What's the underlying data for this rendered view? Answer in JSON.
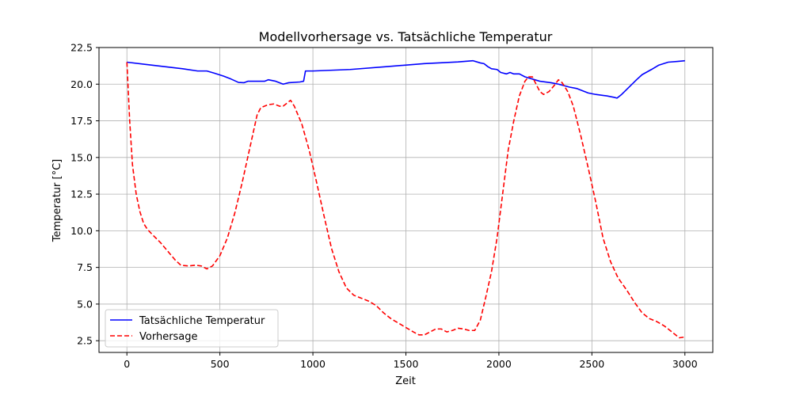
{
  "chart_data": {
    "type": "line",
    "title": "Modellvorhersage vs. Tatsächliche Temperatur",
    "xlabel": "Zeit",
    "ylabel": "Temperatur [°C]",
    "xlim": [
      -150,
      3150
    ],
    "ylim": [
      1.7,
      22.5
    ],
    "xticks": [
      0,
      500,
      1000,
      1500,
      2000,
      2500,
      3000
    ],
    "xtick_labels": [
      "0",
      "500",
      "1000",
      "1500",
      "2000",
      "2500",
      "3000"
    ],
    "yticks": [
      2.5,
      5.0,
      7.5,
      10.0,
      12.5,
      15.0,
      17.5,
      20.0,
      22.5
    ],
    "ytick_labels": [
      "2.5",
      "5.0",
      "7.5",
      "10.0",
      "12.5",
      "15.0",
      "17.5",
      "20.0",
      "22.5"
    ],
    "grid": true,
    "legend_position": "lower-left",
    "series": [
      {
        "name": "Tatsächliche Temperatur",
        "color": "#0000ff",
        "style": "solid",
        "points": [
          [
            0,
            21.5
          ],
          [
            100,
            21.35
          ],
          [
            200,
            21.2
          ],
          [
            300,
            21.05
          ],
          [
            380,
            20.9
          ],
          [
            430,
            20.9
          ],
          [
            470,
            20.75
          ],
          [
            520,
            20.55
          ],
          [
            560,
            20.35
          ],
          [
            600,
            20.12
          ],
          [
            630,
            20.1
          ],
          [
            650,
            20.2
          ],
          [
            700,
            20.2
          ],
          [
            740,
            20.2
          ],
          [
            760,
            20.3
          ],
          [
            800,
            20.2
          ],
          [
            840,
            20.0
          ],
          [
            870,
            20.1
          ],
          [
            930,
            20.15
          ],
          [
            950,
            20.2
          ],
          [
            960,
            20.9
          ],
          [
            1000,
            20.9
          ],
          [
            1200,
            21.0
          ],
          [
            1400,
            21.2
          ],
          [
            1600,
            21.4
          ],
          [
            1780,
            21.52
          ],
          [
            1860,
            21.6
          ],
          [
            1900,
            21.45
          ],
          [
            1920,
            21.4
          ],
          [
            1940,
            21.2
          ],
          [
            1960,
            21.05
          ],
          [
            1990,
            21.0
          ],
          [
            2010,
            20.8
          ],
          [
            2040,
            20.7
          ],
          [
            2060,
            20.8
          ],
          [
            2080,
            20.7
          ],
          [
            2110,
            20.7
          ],
          [
            2140,
            20.5
          ],
          [
            2180,
            20.35
          ],
          [
            2220,
            20.2
          ],
          [
            2280,
            20.1
          ],
          [
            2320,
            20.0
          ],
          [
            2350,
            19.9
          ],
          [
            2380,
            19.8
          ],
          [
            2420,
            19.7
          ],
          [
            2450,
            19.55
          ],
          [
            2480,
            19.4
          ],
          [
            2520,
            19.3
          ],
          [
            2580,
            19.2
          ],
          [
            2620,
            19.1
          ],
          [
            2635,
            19.05
          ],
          [
            2660,
            19.3
          ],
          [
            2700,
            19.8
          ],
          [
            2740,
            20.3
          ],
          [
            2770,
            20.65
          ],
          [
            2820,
            21.0
          ],
          [
            2860,
            21.3
          ],
          [
            2910,
            21.5
          ],
          [
            2960,
            21.55
          ],
          [
            3000,
            21.6
          ]
        ]
      },
      {
        "name": "Vorhersage",
        "color": "#ff0000",
        "style": "dashed",
        "points": [
          [
            0,
            21.5
          ],
          [
            15,
            17.5
          ],
          [
            30,
            14.5
          ],
          [
            50,
            12.5
          ],
          [
            70,
            11.3
          ],
          [
            90,
            10.5
          ],
          [
            110,
            10.1
          ],
          [
            140,
            9.7
          ],
          [
            180,
            9.2
          ],
          [
            220,
            8.6
          ],
          [
            260,
            8.0
          ],
          [
            290,
            7.65
          ],
          [
            330,
            7.6
          ],
          [
            370,
            7.65
          ],
          [
            400,
            7.6
          ],
          [
            430,
            7.4
          ],
          [
            460,
            7.6
          ],
          [
            500,
            8.3
          ],
          [
            540,
            9.5
          ],
          [
            580,
            11.2
          ],
          [
            620,
            13.3
          ],
          [
            660,
            15.6
          ],
          [
            700,
            17.9
          ],
          [
            720,
            18.4
          ],
          [
            760,
            18.6
          ],
          [
            790,
            18.65
          ],
          [
            820,
            18.5
          ],
          [
            840,
            18.5
          ],
          [
            860,
            18.7
          ],
          [
            880,
            18.9
          ],
          [
            900,
            18.5
          ],
          [
            940,
            17.3
          ],
          [
            980,
            15.5
          ],
          [
            1020,
            13.3
          ],
          [
            1060,
            11.0
          ],
          [
            1100,
            8.8
          ],
          [
            1140,
            7.2
          ],
          [
            1180,
            6.1
          ],
          [
            1220,
            5.6
          ],
          [
            1260,
            5.4
          ],
          [
            1300,
            5.2
          ],
          [
            1340,
            4.9
          ],
          [
            1380,
            4.4
          ],
          [
            1420,
            4.0
          ],
          [
            1460,
            3.7
          ],
          [
            1500,
            3.4
          ],
          [
            1540,
            3.1
          ],
          [
            1570,
            2.9
          ],
          [
            1600,
            2.9
          ],
          [
            1630,
            3.1
          ],
          [
            1660,
            3.3
          ],
          [
            1690,
            3.3
          ],
          [
            1720,
            3.1
          ],
          [
            1750,
            3.2
          ],
          [
            1780,
            3.35
          ],
          [
            1810,
            3.3
          ],
          [
            1840,
            3.2
          ],
          [
            1870,
            3.2
          ],
          [
            1900,
            3.9
          ],
          [
            1930,
            5.5
          ],
          [
            1960,
            7.2
          ],
          [
            1990,
            9.5
          ],
          [
            2020,
            12.5
          ],
          [
            2050,
            15.5
          ],
          [
            2080,
            17.5
          ],
          [
            2110,
            19.2
          ],
          [
            2140,
            20.2
          ],
          [
            2160,
            20.5
          ],
          [
            2180,
            20.5
          ],
          [
            2200,
            20.0
          ],
          [
            2220,
            19.5
          ],
          [
            2240,
            19.3
          ],
          [
            2270,
            19.5
          ],
          [
            2300,
            19.95
          ],
          [
            2320,
            20.3
          ],
          [
            2340,
            20.1
          ],
          [
            2370,
            19.5
          ],
          [
            2400,
            18.5
          ],
          [
            2440,
            16.5
          ],
          [
            2480,
            14.3
          ],
          [
            2520,
            12.0
          ],
          [
            2560,
            9.5
          ],
          [
            2600,
            7.9
          ],
          [
            2640,
            6.8
          ],
          [
            2690,
            5.9
          ],
          [
            2730,
            5.1
          ],
          [
            2770,
            4.4
          ],
          [
            2810,
            4.0
          ],
          [
            2850,
            3.8
          ],
          [
            2890,
            3.5
          ],
          [
            2930,
            3.1
          ],
          [
            2970,
            2.7
          ],
          [
            3000,
            2.75
          ]
        ]
      }
    ]
  }
}
